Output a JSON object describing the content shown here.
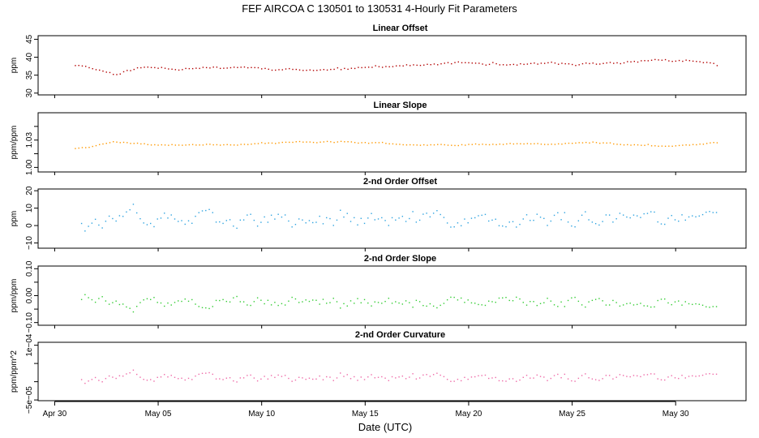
{
  "figure": {
    "title": "FEF   AIRCOA C   130501 to 130531   4-Hourly Fit Parameters",
    "xlabel": "Date (UTC)"
  },
  "x_axis": {
    "ticks": [
      {
        "day": 0,
        "label": "Apr 30"
      },
      {
        "day": 5,
        "label": "May 05"
      },
      {
        "day": 10,
        "label": "May 10"
      },
      {
        "day": 15,
        "label": "May 15"
      },
      {
        "day": 20,
        "label": "May 20"
      },
      {
        "day": 25,
        "label": "May 25"
      },
      {
        "day": 30,
        "label": "May 30"
      }
    ],
    "range_days": [
      -0.8,
      33.4
    ]
  },
  "chart_data": [
    {
      "type": "scatter",
      "title": "Linear Offset",
      "ylabel": "ppm",
      "ylim": [
        29.5,
        46
      ],
      "yticks": [
        30,
        35,
        40,
        45
      ],
      "ytick_labels": [
        "30",
        "35",
        "40",
        "45"
      ],
      "color": "#b30000",
      "x_start_day": 1.0,
      "x_end_day": 32.0,
      "step_days": 0.1667,
      "series_anchors": [
        {
          "day": 1.0,
          "value": 37.8
        },
        {
          "day": 1.8,
          "value": 37.0
        },
        {
          "day": 2.3,
          "value": 36.2
        },
        {
          "day": 2.9,
          "value": 35.3
        },
        {
          "day": 3.5,
          "value": 36.2
        },
        {
          "day": 4.2,
          "value": 37.1
        },
        {
          "day": 5.0,
          "value": 37.0
        },
        {
          "day": 6.0,
          "value": 36.8
        },
        {
          "day": 7.0,
          "value": 37.2
        },
        {
          "day": 8.0,
          "value": 37.0
        },
        {
          "day": 9.0,
          "value": 37.3
        },
        {
          "day": 10.0,
          "value": 36.9
        },
        {
          "day": 11.0,
          "value": 36.6
        },
        {
          "day": 12.0,
          "value": 36.4
        },
        {
          "day": 13.0,
          "value": 36.4
        },
        {
          "day": 14.0,
          "value": 36.7
        },
        {
          "day": 15.0,
          "value": 37.0
        },
        {
          "day": 16.0,
          "value": 37.5
        },
        {
          "day": 17.0,
          "value": 37.7
        },
        {
          "day": 18.0,
          "value": 37.8
        },
        {
          "day": 19.0,
          "value": 38.2
        },
        {
          "day": 20.0,
          "value": 38.5
        },
        {
          "day": 21.0,
          "value": 38.0
        },
        {
          "day": 22.0,
          "value": 38.0
        },
        {
          "day": 23.0,
          "value": 38.1
        },
        {
          "day": 24.0,
          "value": 38.3
        },
        {
          "day": 25.0,
          "value": 38.0
        },
        {
          "day": 26.0,
          "value": 38.2
        },
        {
          "day": 27.0,
          "value": 38.2
        },
        {
          "day": 28.0,
          "value": 38.7
        },
        {
          "day": 29.0,
          "value": 39.3
        },
        {
          "day": 30.0,
          "value": 39.0
        },
        {
          "day": 31.0,
          "value": 38.7
        },
        {
          "day": 31.7,
          "value": 38.3
        },
        {
          "day": 32.0,
          "value": 37.8
        }
      ],
      "noise_amplitude": 0.25,
      "noise_seed": 11
    },
    {
      "type": "scatter",
      "title": "Linear Slope",
      "ylabel": "ppm/ppm",
      "ylim": [
        0.995,
        1.06
      ],
      "yticks": [
        1.0,
        1.015,
        1.03,
        1.045
      ],
      "ytick_labels": [
        "1.00",
        "",
        "1.03",
        ""
      ],
      "color": "#ff9900",
      "x_start_day": 1.0,
      "x_end_day": 32.0,
      "step_days": 0.1667,
      "series_anchors": [
        {
          "day": 1.0,
          "value": 1.021
        },
        {
          "day": 1.6,
          "value": 1.022
        },
        {
          "day": 2.2,
          "value": 1.026
        },
        {
          "day": 2.8,
          "value": 1.028
        },
        {
          "day": 3.5,
          "value": 1.027
        },
        {
          "day": 4.5,
          "value": 1.025
        },
        {
          "day": 6.0,
          "value": 1.025
        },
        {
          "day": 8.0,
          "value": 1.025
        },
        {
          "day": 10.0,
          "value": 1.026
        },
        {
          "day": 12.0,
          "value": 1.028
        },
        {
          "day": 14.0,
          "value": 1.028
        },
        {
          "day": 16.0,
          "value": 1.026
        },
        {
          "day": 18.0,
          "value": 1.025
        },
        {
          "day": 20.0,
          "value": 1.025
        },
        {
          "day": 22.0,
          "value": 1.026
        },
        {
          "day": 24.0,
          "value": 1.026
        },
        {
          "day": 26.0,
          "value": 1.027
        },
        {
          "day": 28.0,
          "value": 1.025
        },
        {
          "day": 29.5,
          "value": 1.023
        },
        {
          "day": 31.0,
          "value": 1.025
        },
        {
          "day": 32.0,
          "value": 1.027
        }
      ],
      "noise_amplitude": 0.0006,
      "noise_seed": 23
    },
    {
      "type": "scatter",
      "title": "2-nd Order Offset",
      "ylabel": "ppm",
      "ylim": [
        -13,
        21
      ],
      "yticks": [
        -10,
        0,
        10,
        20
      ],
      "ytick_labels": [
        "−10",
        "0",
        "10",
        "20"
      ],
      "color": "#2ea3e0",
      "x_start_day": 1.3,
      "x_end_day": 31.9,
      "step_days": 0.1667,
      "base_value": 3.0,
      "noise_amplitude": 3.6,
      "noise_seed": 37
    },
    {
      "type": "scatter",
      "title": "2-nd Order Slope",
      "ylabel": "ppm/ppm",
      "ylim": [
        -0.11,
        0.11
      ],
      "yticks": [
        -0.1,
        -0.05,
        0.0,
        0.05,
        0.1
      ],
      "ytick_labels": [
        "−0.10",
        "",
        "0.00",
        "",
        "0.10"
      ],
      "color": "#33cc33",
      "x_start_day": 1.3,
      "x_end_day": 31.9,
      "step_days": 0.1667,
      "base_value": -0.022,
      "noise_amplitude": 0.015,
      "noise_seed": 37,
      "noise_sign": -1
    },
    {
      "type": "scatter",
      "title": "2-nd Order Curvature",
      "ylabel": "ppm/ppm^2",
      "ylim": [
        -5.2e-05,
        0.000108
      ],
      "yticks": [
        -5e-05,
        0.0,
        5e-05,
        0.0001
      ],
      "ytick_labels": [
        "−5e−05",
        "",
        "",
        "1e−04"
      ],
      "color": "#ee6aa7",
      "x_start_day": 1.3,
      "x_end_day": 31.9,
      "step_days": 0.1667,
      "base_value": 1e-05,
      "noise_amplitude": 8.5e-06,
      "noise_seed": 37
    }
  ]
}
